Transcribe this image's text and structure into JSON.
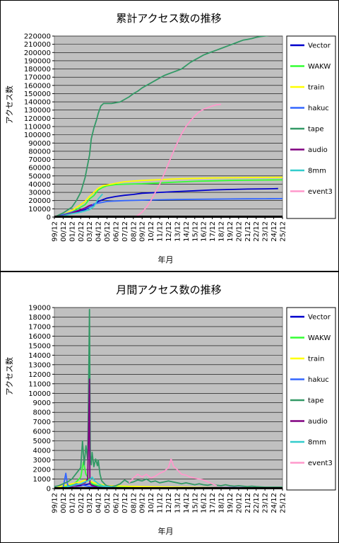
{
  "chart_data": [
    {
      "type": "line",
      "title": "累計アクセス数の推移",
      "xlabel": "年月",
      "ylabel": "アクセス数",
      "ylim": [
        0,
        220000
      ],
      "ytick_step": 10000,
      "grid": "horizontal",
      "legend_position": "right",
      "categories": [
        "99/12",
        "00/12",
        "01/12",
        "02/12",
        "03/12",
        "04/12",
        "05/12",
        "06/12",
        "07/12",
        "08/12",
        "09/12",
        "10/12",
        "11/12",
        "12/12",
        "13/12",
        "14/12",
        "15/12",
        "16/12",
        "17/12",
        "18/12",
        "19/12",
        "20/12",
        "21/12",
        "22/12",
        "23/12",
        "24/12",
        "25/12"
      ],
      "series": [
        {
          "name": "Vector",
          "color": "#0000CC",
          "x": [
            0,
            0.5,
            1,
            1.5,
            2,
            2.5,
            3,
            3.5,
            4,
            4.5,
            5,
            5.5,
            6,
            7,
            8,
            9,
            10,
            12,
            14,
            16,
            18,
            20,
            22,
            24,
            25,
            25.5
          ],
          "values": [
            0,
            1000,
            3000,
            4000,
            5000,
            6000,
            8000,
            9000,
            12000,
            15000,
            19000,
            21000,
            23000,
            25000,
            26500,
            27500,
            29000,
            30000,
            31000,
            32000,
            33000,
            33500,
            34000,
            34300,
            34500,
            34600
          ]
        },
        {
          "name": "WAKW",
          "color": "#33FF33",
          "x": [
            0,
            1,
            2,
            3,
            3.5,
            4,
            4.5,
            5,
            5.5,
            6,
            7,
            8,
            10,
            12,
            14,
            16,
            18,
            20,
            22,
            24,
            26,
            27
          ],
          "values": [
            0,
            2000,
            6000,
            12000,
            15000,
            22000,
            26000,
            33000,
            36000,
            38000,
            39500,
            40000,
            40500,
            41500,
            42500,
            43500,
            44000,
            44500,
            44800,
            45000,
            45200,
            45300
          ]
        },
        {
          "name": "train",
          "color": "#FFFF00",
          "x": [
            0,
            1,
            2,
            3,
            3.5,
            4,
            4.5,
            5,
            5.5,
            6,
            7,
            8,
            10,
            12,
            14,
            16,
            18,
            20,
            22,
            24,
            26,
            27
          ],
          "values": [
            0,
            3000,
            8000,
            15000,
            19000,
            25000,
            30000,
            35000,
            38000,
            39000,
            41000,
            43000,
            44500,
            45500,
            46500,
            47000,
            47500,
            47800,
            48000,
            48200,
            48400,
            48500
          ]
        },
        {
          "name": "hakuc",
          "color": "#3366FF",
          "x": [
            0,
            1,
            2,
            3,
            4,
            4.5,
            5,
            5.5,
            6,
            8,
            10,
            12,
            14,
            16,
            18,
            20,
            22,
            24,
            26,
            27
          ],
          "values": [
            0,
            3000,
            6000,
            9000,
            12000,
            16000,
            17000,
            18000,
            19000,
            20000,
            20500,
            21000,
            21300,
            21600,
            21800,
            22000,
            22200,
            22300,
            22400,
            22500
          ]
        },
        {
          "name": "tape",
          "color": "#339966",
          "x": [
            0,
            1,
            2,
            2.5,
            3,
            3.5,
            4,
            4.2,
            4.5,
            4.8,
            5,
            5.3,
            5.6,
            6,
            6.5,
            7,
            7.5,
            8,
            8.5,
            9,
            9.5,
            10,
            10.5,
            11,
            11.5,
            12,
            12.5,
            13,
            13.5,
            14,
            14.5,
            15,
            15.5,
            16,
            16.5,
            17,
            17.5,
            18,
            18.5,
            19,
            19.5,
            20,
            20.5,
            21,
            21.5,
            22,
            22.5,
            23,
            23.5,
            24,
            24.5,
            25,
            25.5,
            26,
            26.5,
            27
          ],
          "values": [
            0,
            5000,
            12000,
            20000,
            30000,
            48000,
            75000,
            95000,
            108000,
            118000,
            126000,
            135000,
            138000,
            138000,
            138000,
            139000,
            140000,
            143000,
            146000,
            150000,
            153000,
            157000,
            160000,
            163000,
            166000,
            169000,
            172000,
            174000,
            176000,
            178000,
            180000,
            184000,
            188000,
            191000,
            194000,
            197000,
            199000,
            201000,
            203000,
            205000,
            207000,
            209000,
            211000,
            213000,
            215000,
            216000,
            217000,
            218500,
            219500,
            220200,
            220800,
            221000,
            221200,
            221300,
            221400,
            221500
          ]
        },
        {
          "name": "audio",
          "color": "#800080",
          "x": [
            0,
            1,
            2,
            2.5,
            3,
            3.5,
            4,
            4.3
          ],
          "values": [
            0,
            2000,
            5000,
            7000,
            9000,
            11000,
            14000,
            15000
          ]
        },
        {
          "name": "8mm",
          "color": "#33CCCC",
          "x": [
            0,
            1,
            2,
            3,
            4,
            4.5,
            5,
            5.5
          ],
          "values": [
            0,
            1500,
            4000,
            6000,
            9000,
            13000,
            22000,
            28000
          ]
        },
        {
          "name": "event3",
          "color": "#FF99CC",
          "x": [
            9,
            9.5,
            10,
            10.5,
            11,
            11.5,
            12,
            12.5,
            13,
            13.5,
            14,
            14.5,
            15,
            15.5,
            16,
            16.5,
            17,
            17.5,
            18,
            18.5,
            19
          ],
          "values": [
            0,
            2000,
            6000,
            12000,
            20000,
            30000,
            40000,
            52000,
            65000,
            78000,
            90000,
            101000,
            110000,
            117000,
            123000,
            128000,
            131000,
            133000,
            135000,
            136500,
            137000
          ]
        }
      ]
    },
    {
      "type": "line",
      "title": "月間アクセス数の推移",
      "xlabel": "年月",
      "ylabel": "アクセス数",
      "ylim": [
        0,
        19000
      ],
      "ytick_step": 1000,
      "grid": "horizontal",
      "legend_position": "right",
      "categories": [
        "99/12",
        "00/12",
        "01/12",
        "02/12",
        "03/12",
        "04/12",
        "05/12",
        "06/12",
        "07/12",
        "08/12",
        "09/12",
        "10/12",
        "11/12",
        "12/12",
        "13/12",
        "14/12",
        "15/12",
        "16/12",
        "17/12",
        "18/12",
        "19/12",
        "20/12",
        "21/12",
        "22/12",
        "23/12",
        "24/12",
        "25/12"
      ],
      "series": [
        {
          "name": "Vector",
          "color": "#0000CC",
          "x": [
            0,
            1,
            1.5,
            2,
            2.5,
            3,
            3.5,
            4,
            4.5,
            5,
            6,
            8,
            10,
            12,
            14,
            16,
            18,
            20,
            22,
            24,
            26,
            27
          ],
          "values": [
            0,
            100,
            200,
            300,
            250,
            300,
            400,
            500,
            300,
            250,
            200,
            180,
            150,
            140,
            130,
            120,
            110,
            100,
            90,
            80,
            70,
            60
          ]
        },
        {
          "name": "WAKW",
          "color": "#33FF33",
          "x": [
            0,
            1,
            2,
            2.5,
            3,
            3.3,
            3.6,
            4,
            4.3,
            4.6,
            5,
            5.5,
            6,
            8,
            10,
            12,
            14,
            16,
            18,
            20,
            22,
            24,
            26,
            27
          ],
          "values": [
            0,
            200,
            400,
            700,
            1200,
            2800,
            1500,
            900,
            500,
            400,
            300,
            250,
            200,
            150,
            120,
            100,
            90,
            80,
            70,
            60,
            50,
            40,
            30,
            20
          ]
        },
        {
          "name": "train",
          "color": "#FFFF00",
          "x": [
            0,
            1,
            2,
            3,
            3.5,
            4,
            4.5,
            5,
            5.5,
            6,
            8,
            10,
            12,
            14,
            16,
            18,
            20,
            22,
            24,
            26,
            27
          ],
          "values": [
            0,
            300,
            500,
            700,
            900,
            800,
            600,
            500,
            400,
            300,
            250,
            200,
            180,
            150,
            120,
            100,
            80,
            60,
            50,
            40,
            30
          ]
        },
        {
          "name": "hakuc",
          "color": "#3366FF",
          "x": [
            0,
            1,
            1.3,
            1.5,
            1.8,
            2,
            2.5,
            3,
            3.5,
            4,
            5,
            6,
            8,
            10,
            12,
            14,
            16,
            18,
            20,
            22,
            24,
            26,
            27
          ],
          "values": [
            0,
            100,
            1600,
            400,
            200,
            300,
            500,
            400,
            300,
            200,
            150,
            100,
            80,
            70,
            60,
            50,
            40,
            30,
            30,
            20,
            20,
            20,
            20
          ]
        },
        {
          "name": "tape",
          "color": "#339966",
          "x": [
            0,
            0.5,
            1,
            1.5,
            2,
            2.5,
            3,
            3.2,
            3.4,
            3.6,
            3.8,
            4,
            4.1,
            4.2,
            4.3,
            4.5,
            4.7,
            4.9,
            5,
            5.2,
            5.4,
            5.6,
            5.8,
            6,
            6.5,
            7,
            7.5,
            8,
            8.5,
            9,
            9.5,
            10,
            10.5,
            11,
            11.5,
            12,
            12.5,
            13,
            13.5,
            14,
            14.5,
            15,
            15.5,
            16,
            16.5,
            17,
            17.5,
            18,
            18.5,
            19,
            19.5,
            20,
            20.5,
            21,
            21.5,
            22,
            22.5,
            23,
            24,
            25,
            26,
            27
          ],
          "values": [
            200,
            300,
            500,
            700,
            1000,
            1600,
            2200,
            5000,
            2500,
            4500,
            3000,
            18800,
            3500,
            2500,
            3800,
            2300,
            3100,
            2400,
            3000,
            1500,
            800,
            600,
            400,
            300,
            200,
            300,
            500,
            900,
            600,
            700,
            900,
            800,
            1000,
            700,
            800,
            600,
            700,
            800,
            700,
            600,
            500,
            600,
            500,
            400,
            500,
            400,
            350,
            450,
            350,
            300,
            400,
            300,
            250,
            300,
            250,
            200,
            250,
            200,
            150,
            150,
            150,
            150
          ]
        },
        {
          "name": "audio",
          "color": "#800080",
          "x": [
            0,
            1,
            2,
            3,
            3.5,
            3.8,
            4,
            4.05,
            4.15,
            4.3,
            4.6,
            5,
            5.5,
            6
          ],
          "values": [
            0,
            100,
            200,
            400,
            600,
            1000,
            11500,
            600,
            400,
            300,
            200,
            100,
            80,
            60
          ]
        },
        {
          "name": "8mm",
          "color": "#33CCCC",
          "x": [
            0,
            1,
            2,
            3,
            3.5,
            4,
            4.3,
            4.6,
            5,
            5.5,
            6,
            6.5,
            7,
            8,
            10
          ],
          "values": [
            0,
            100,
            300,
            500,
            700,
            900,
            1200,
            800,
            500,
            300,
            200,
            150,
            100,
            80,
            60
          ]
        },
        {
          "name": "event3",
          "color": "#FF99CC",
          "x": [
            8.5,
            9,
            9.5,
            10,
            10.5,
            11,
            11.5,
            12,
            12.5,
            13,
            13.3,
            13.6,
            14,
            14.5,
            15,
            15.5,
            16,
            16.5,
            17,
            17.5,
            18,
            18.5
          ],
          "values": [
            600,
            1100,
            1500,
            1200,
            1500,
            1100,
            1300,
            1600,
            1800,
            2200,
            3100,
            2300,
            2000,
            1500,
            1400,
            1200,
            1100,
            1000,
            900,
            700,
            500,
            300
          ]
        }
      ]
    }
  ]
}
